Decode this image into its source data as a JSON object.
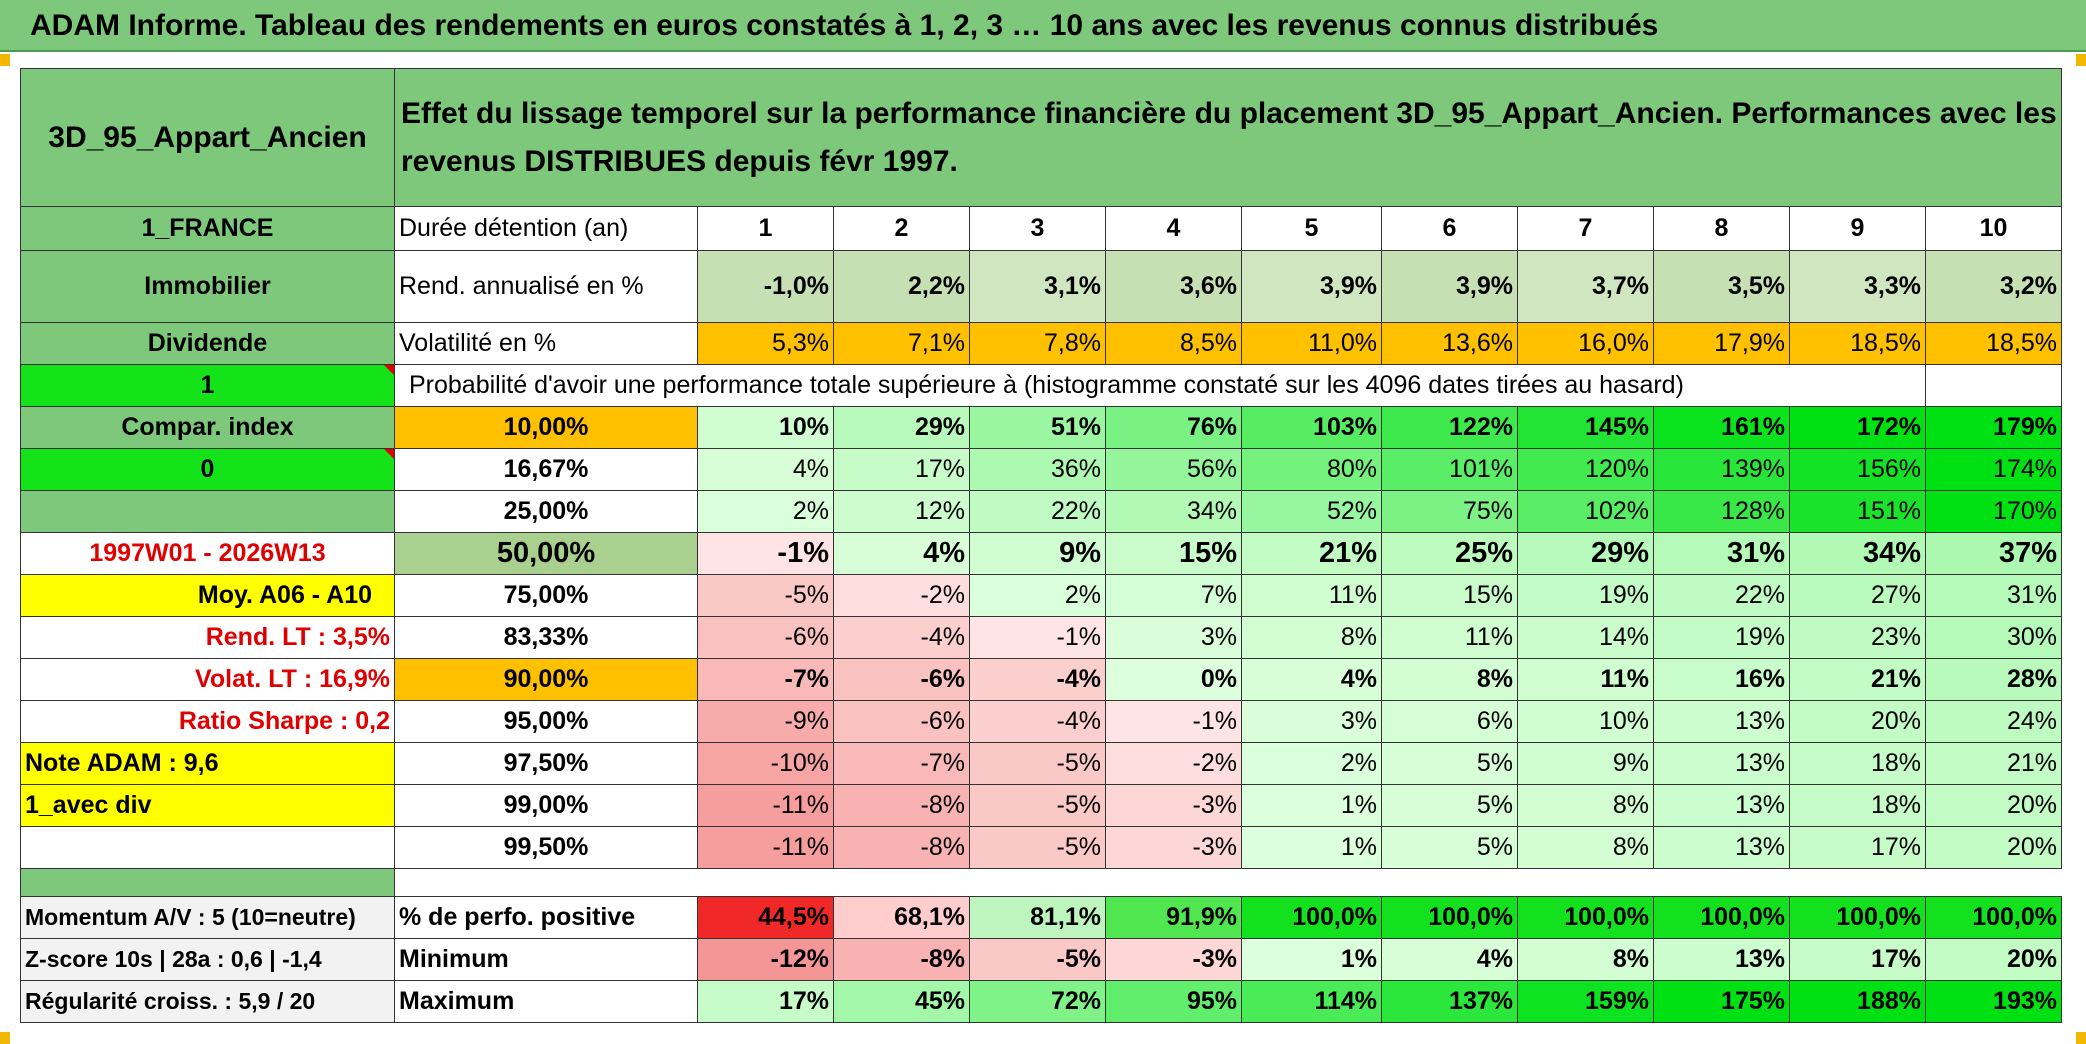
{
  "title": "ADAM Informe. Tableau des rendements en euros constatés à 1, 2, 3 … 10 ans avec les revenus connus distribués",
  "header": {
    "asset": "3D_95_Appart_Ancien",
    "description": "Effet du lissage temporel sur la performance financière du placement 3D_95_Appart_Ancien. Performances avec les revenus DISTRIBUES depuis févr 1997."
  },
  "left": {
    "country": "1_FRANCE",
    "category": "Immobilier",
    "mode": "Dividende",
    "sel1": "1",
    "compar": "Compar. index",
    "sel2": "0",
    "blank": "",
    "period": "1997W01 - 2026W13",
    "moy": "Moy. A06 - A10",
    "rend_lt": "Rend. LT :   3,5%",
    "volat_lt": "Volat. LT :   16,9%",
    "sharpe": "Ratio Sharpe :    0,2",
    "note": "Note ADAM : 9,6",
    "div": "1_avec div",
    "momentum": "Momentum A/V : 5 (10=neutre)",
    "zscore": "Z-score 10s | 28a : 0,6 | -1,4",
    "regularite": "Régularité croiss. : 5,9 / 20"
  },
  "labels": {
    "duree": "Durée détention (an)",
    "rend": "Rend. annualisé en %",
    "volat": "Volatilité en %",
    "proba": "Probabilité d'avoir une performance totale supérieure à (histogramme constaté sur les 4096 dates tirées au hasard)",
    "pos": "% de perfo. positive",
    "min": "Minimum",
    "max": "Maximum"
  },
  "years": [
    "1",
    "2",
    "3",
    "4",
    "5",
    "6",
    "7",
    "8",
    "9",
    "10"
  ],
  "rend": [
    "-1,0%",
    "2,2%",
    "3,1%",
    "3,6%",
    "3,9%",
    "3,9%",
    "3,7%",
    "3,5%",
    "3,3%",
    "3,2%"
  ],
  "volat": [
    "5,3%",
    "7,1%",
    "7,8%",
    "8,5%",
    "11,0%",
    "13,6%",
    "16,0%",
    "17,9%",
    "18,5%",
    "18,5%"
  ],
  "quantiles": [
    {
      "q": "10,00%",
      "v": [
        "10%",
        "29%",
        "51%",
        "76%",
        "103%",
        "122%",
        "145%",
        "161%",
        "172%",
        "179%"
      ]
    },
    {
      "q": "16,67%",
      "v": [
        "4%",
        "17%",
        "36%",
        "56%",
        "80%",
        "101%",
        "120%",
        "139%",
        "156%",
        "174%"
      ]
    },
    {
      "q": "25,00%",
      "v": [
        "2%",
        "12%",
        "22%",
        "34%",
        "52%",
        "75%",
        "102%",
        "128%",
        "151%",
        "170%"
      ]
    },
    {
      "q": "50,00%",
      "v": [
        "-1%",
        "4%",
        "9%",
        "15%",
        "21%",
        "25%",
        "29%",
        "31%",
        "34%",
        "37%"
      ]
    },
    {
      "q": "75,00%",
      "v": [
        "-5%",
        "-2%",
        "2%",
        "7%",
        "11%",
        "15%",
        "19%",
        "22%",
        "27%",
        "31%"
      ]
    },
    {
      "q": "83,33%",
      "v": [
        "-6%",
        "-4%",
        "-1%",
        "3%",
        "8%",
        "11%",
        "14%",
        "19%",
        "23%",
        "30%"
      ]
    },
    {
      "q": "90,00%",
      "v": [
        "-7%",
        "-6%",
        "-4%",
        "0%",
        "4%",
        "8%",
        "11%",
        "16%",
        "21%",
        "28%"
      ]
    },
    {
      "q": "95,00%",
      "v": [
        "-9%",
        "-6%",
        "-4%",
        "-1%",
        "3%",
        "6%",
        "10%",
        "13%",
        "20%",
        "24%"
      ]
    },
    {
      "q": "97,50%",
      "v": [
        "-10%",
        "-7%",
        "-5%",
        "-2%",
        "2%",
        "5%",
        "9%",
        "13%",
        "18%",
        "21%"
      ]
    },
    {
      "q": "99,00%",
      "v": [
        "-11%",
        "-8%",
        "-5%",
        "-3%",
        "1%",
        "5%",
        "8%",
        "13%",
        "18%",
        "20%"
      ]
    },
    {
      "q": "99,50%",
      "v": [
        "-11%",
        "-8%",
        "-5%",
        "-3%",
        "1%",
        "5%",
        "8%",
        "13%",
        "17%",
        "20%"
      ]
    }
  ],
  "pos": [
    "44,5%",
    "68,1%",
    "81,1%",
    "91,9%",
    "100,0%",
    "100,0%",
    "100,0%",
    "100,0%",
    "100,0%",
    "100,0%"
  ],
  "min": [
    "-12%",
    "-8%",
    "-5%",
    "-3%",
    "1%",
    "4%",
    "8%",
    "13%",
    "17%",
    "20%"
  ],
  "max": [
    "17%",
    "45%",
    "72%",
    "95%",
    "114%",
    "137%",
    "159%",
    "175%",
    "188%",
    "193%"
  ]
}
